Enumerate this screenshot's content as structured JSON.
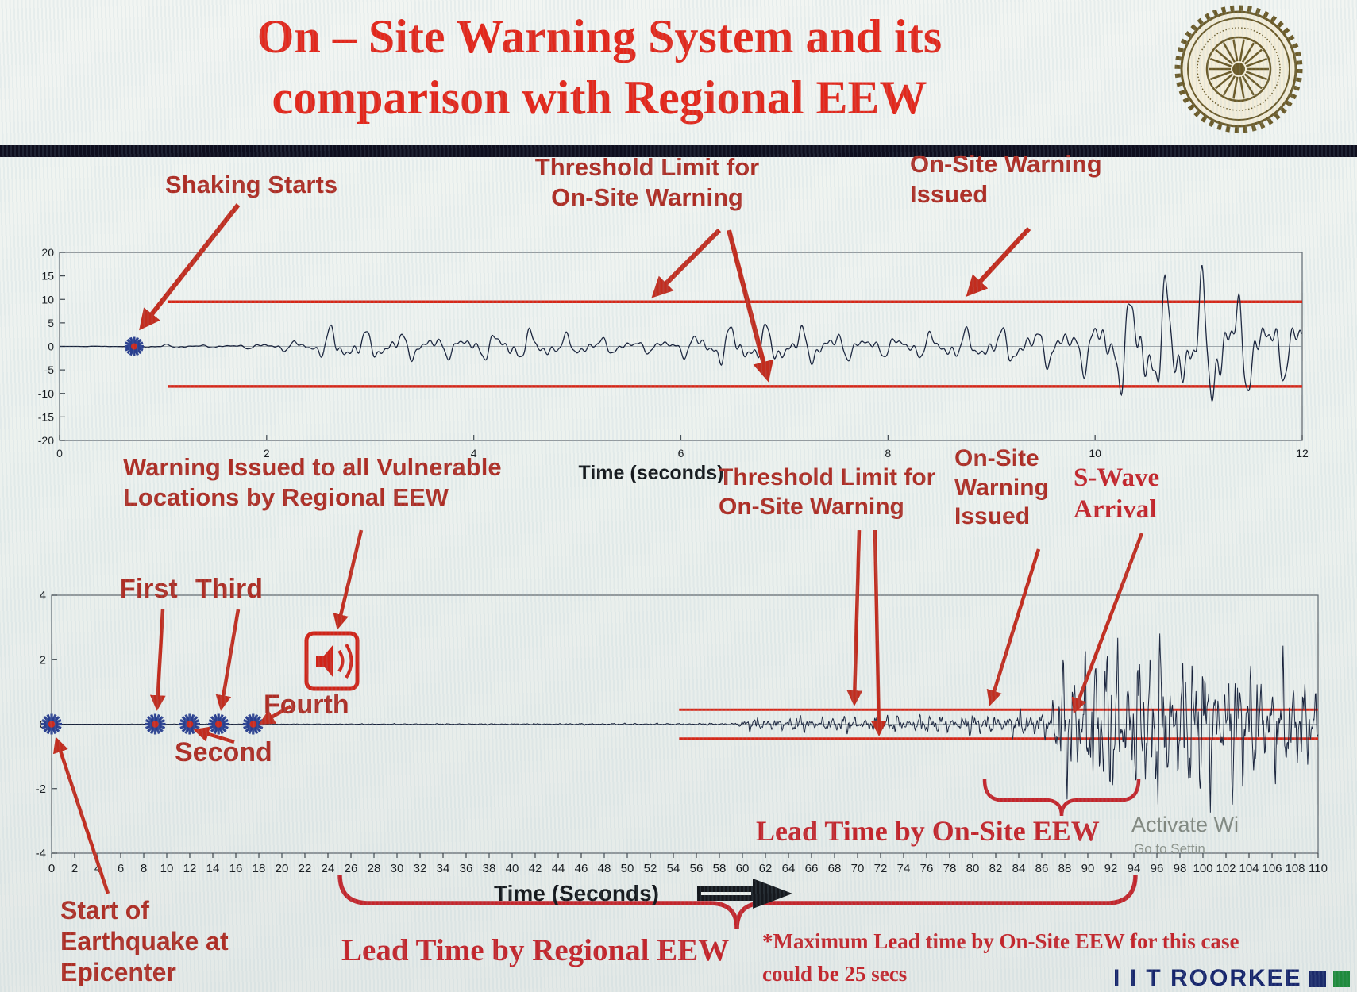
{
  "slide": {
    "title": "On – Site Warning System and its\ncomparison with Regional EEW",
    "title_color": "#e3271b",
    "footer_brand": "I I T ROORKEE",
    "watermark": {
      "line1": "Activate Wi",
      "line2": "Go to Settin"
    }
  },
  "annotations": {
    "shaking_starts": "Shaking Starts",
    "threshold_top": "Threshold Limit for\nOn-Site Warning",
    "onsite_issued_top": "On-Site Warning\nIssued",
    "regional_warning": "Warning Issued to all Vulnerable\nLocations by Regional EEW",
    "threshold_bottom": "Threshold Limit for\nOn-Site Warning",
    "onsite_issued_bottom": "On-Site\nWarning\nIssued",
    "s_wave": "S-Wave\nArrival",
    "first": "First",
    "second": "Second",
    "third": "Third",
    "fourth": "Fourth",
    "lead_onsite": "Lead Time by On-Site EEW",
    "lead_regional": "Lead Time by Regional EEW",
    "max_lead_note": "*Maximum Lead time by On-Site EEW for this case\ncould be 25 secs",
    "epicenter_start": "Start of\nEarthquake at\nEpicenter"
  },
  "chart_data": [
    {
      "type": "line",
      "name": "on-site-seismogram",
      "title": "",
      "xlabel": "Time (seconds)",
      "ylabel": "",
      "xlim": [
        0,
        12
      ],
      "ylim": [
        -20,
        20
      ],
      "xticks": [
        0,
        2,
        4,
        6,
        8,
        10,
        12
      ],
      "yticks": [
        20,
        15,
        10,
        5,
        0,
        -5,
        -10,
        -15,
        -20
      ],
      "grid": false,
      "legend": null,
      "line_color": "#18213a",
      "threshold_color": "#d62718",
      "threshold": {
        "upper": 9.5,
        "lower": -8.5,
        "t_start": 1.05
      },
      "shaking_start_time": 0.72,
      "warning_issued_time": 9.2,
      "detections": [
        {
          "t": 0.72,
          "label": "Shaking Starts"
        }
      ],
      "envelope": [
        [
          0,
          0
        ],
        [
          0.65,
          0.1
        ],
        [
          0.72,
          0.5
        ],
        [
          1.1,
          0.9
        ],
        [
          1.6,
          1.1
        ],
        [
          2.1,
          1.4
        ],
        [
          2.45,
          1.6
        ],
        [
          2.6,
          4.2
        ],
        [
          3.0,
          3.4
        ],
        [
          3.4,
          4.0
        ],
        [
          3.9,
          3.5
        ],
        [
          4.4,
          4.4
        ],
        [
          4.9,
          3.7
        ],
        [
          5.4,
          4.6
        ],
        [
          5.9,
          4.0
        ],
        [
          6.4,
          4.8
        ],
        [
          6.9,
          4.1
        ],
        [
          7.4,
          4.6
        ],
        [
          7.9,
          3.9
        ],
        [
          8.4,
          4.4
        ],
        [
          8.9,
          5.0
        ],
        [
          9.2,
          7.0
        ],
        [
          9.6,
          10.5
        ],
        [
          10.0,
          13.0
        ],
        [
          10.4,
          15.5
        ],
        [
          10.8,
          11.5
        ],
        [
          11.2,
          14.5
        ],
        [
          11.6,
          12.0
        ],
        [
          12,
          13.5
        ]
      ]
    },
    {
      "type": "line",
      "name": "regional-vs-onsite-timeline",
      "title": "",
      "xlabel": "Time (Seconds)",
      "ylabel": "",
      "xlim": [
        0,
        110
      ],
      "ylim": [
        -4,
        4
      ],
      "xticks": [
        0,
        2,
        4,
        6,
        8,
        10,
        12,
        14,
        16,
        18,
        20,
        22,
        24,
        26,
        28,
        30,
        32,
        34,
        36,
        38,
        40,
        42,
        44,
        46,
        48,
        50,
        52,
        54,
        56,
        58,
        60,
        62,
        64,
        66,
        68,
        70,
        72,
        74,
        76,
        78,
        80,
        82,
        84,
        86,
        88,
        90,
        92,
        94,
        96,
        98,
        100,
        102,
        104,
        106,
        108,
        110
      ],
      "yticks": [
        4,
        2,
        0,
        -2,
        -4
      ],
      "grid": false,
      "legend": null,
      "line_color": "#18213a",
      "threshold_color": "#d62718",
      "threshold": {
        "upper": 0.45,
        "lower": -0.45,
        "t_start": 54.5
      },
      "detections": [
        {
          "t": 0,
          "label": "Start of Earthquake at Epicenter"
        },
        {
          "t": 9,
          "label": "First"
        },
        {
          "t": 12,
          "label": "Second"
        },
        {
          "t": 14.5,
          "label": "Third"
        },
        {
          "t": 17.5,
          "label": "Fourth"
        }
      ],
      "regional_warning_time": 24,
      "onsite_warning_time": 80,
      "s_wave_arrival_time": 88.5,
      "lead_time_regional_span": [
        24,
        94
      ],
      "lead_time_onsite_span": [
        81,
        94
      ],
      "max_lead_time_onsite_secs": 25,
      "envelope": [
        [
          0,
          0
        ],
        [
          59,
          0.04
        ],
        [
          60,
          0.2
        ],
        [
          63,
          0.27
        ],
        [
          68,
          0.3
        ],
        [
          73,
          0.32
        ],
        [
          78,
          0.35
        ],
        [
          83,
          0.42
        ],
        [
          86,
          0.55
        ],
        [
          87.5,
          1.7
        ],
        [
          89,
          2.9
        ],
        [
          90.5,
          3.3
        ],
        [
          92,
          2.6
        ],
        [
          93.5,
          3.3
        ],
        [
          95,
          2.8
        ],
        [
          97,
          3.2
        ],
        [
          99,
          2.6
        ],
        [
          101,
          2.9
        ],
        [
          103,
          2.2
        ],
        [
          105,
          2.5
        ],
        [
          107,
          1.9
        ],
        [
          109,
          2.1
        ],
        [
          110,
          2.0
        ]
      ]
    }
  ]
}
